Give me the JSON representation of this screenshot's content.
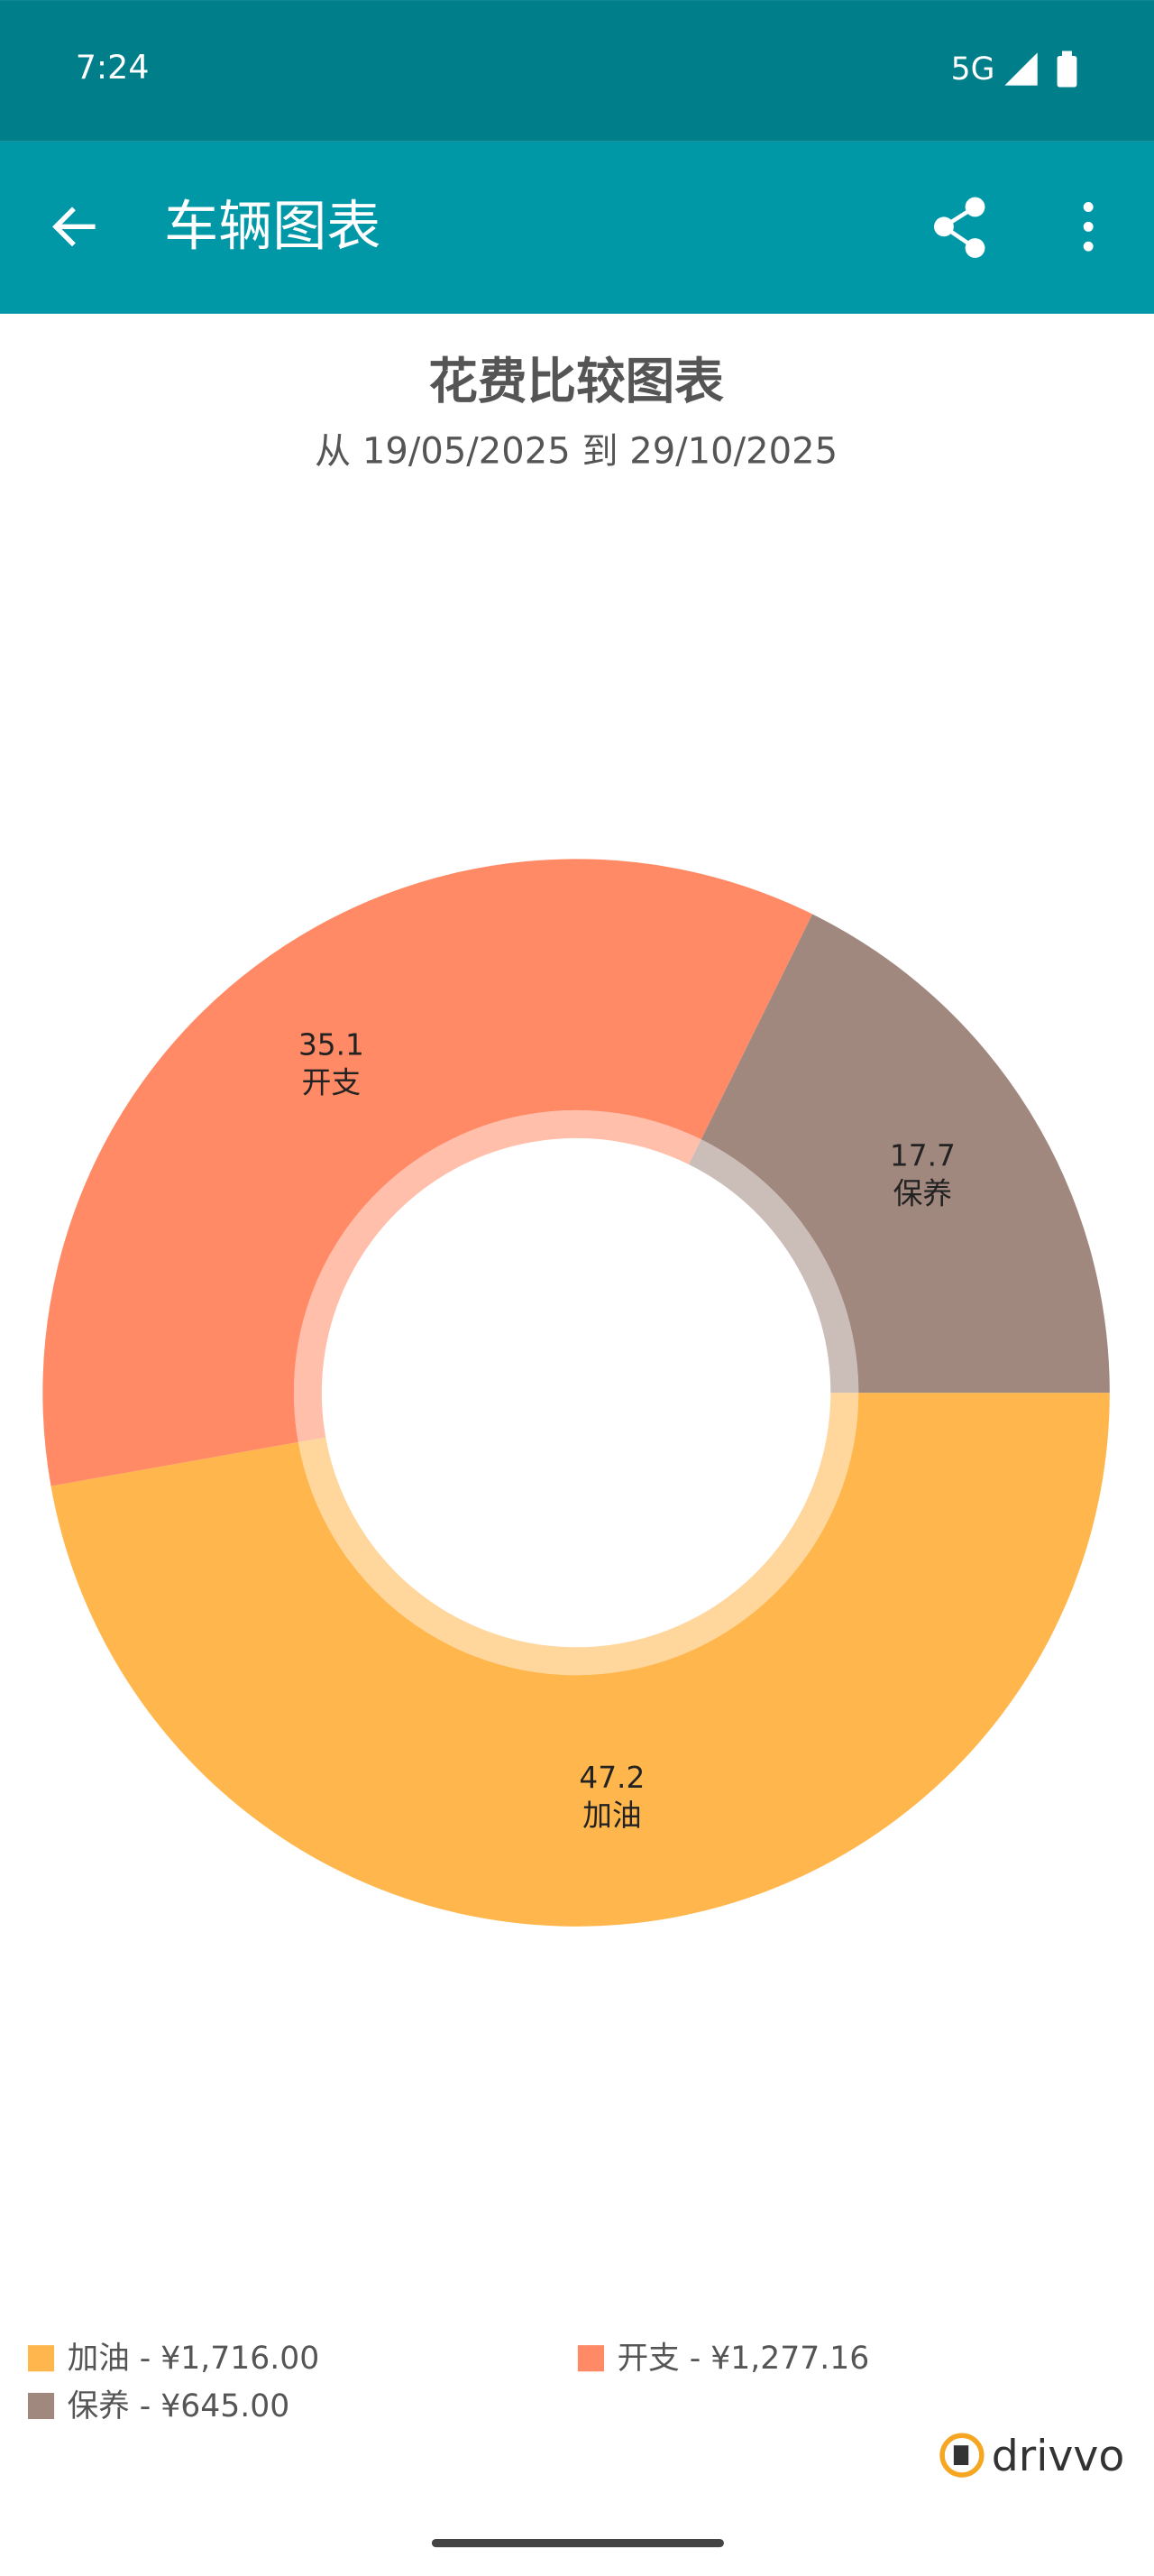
{
  "status_bar": {
    "time": "7:24",
    "network": "5G"
  },
  "app_bar": {
    "title": "车辆图表"
  },
  "chart_data": {
    "type": "pie",
    "title": "花费比较图表",
    "subtitle": "从 19/05/2025 到 29/10/2025",
    "categories": [
      "加油",
      "开支",
      "保养"
    ],
    "values": [
      47.2,
      35.1,
      17.7
    ],
    "colors": [
      "#ffb74d",
      "#ff8a65",
      "#a1887f"
    ],
    "legend": [
      "加油 - ¥1,716.00",
      "开支 - ¥1,277.16",
      "保养 - ¥645.00"
    ]
  },
  "brand": "drivvo"
}
